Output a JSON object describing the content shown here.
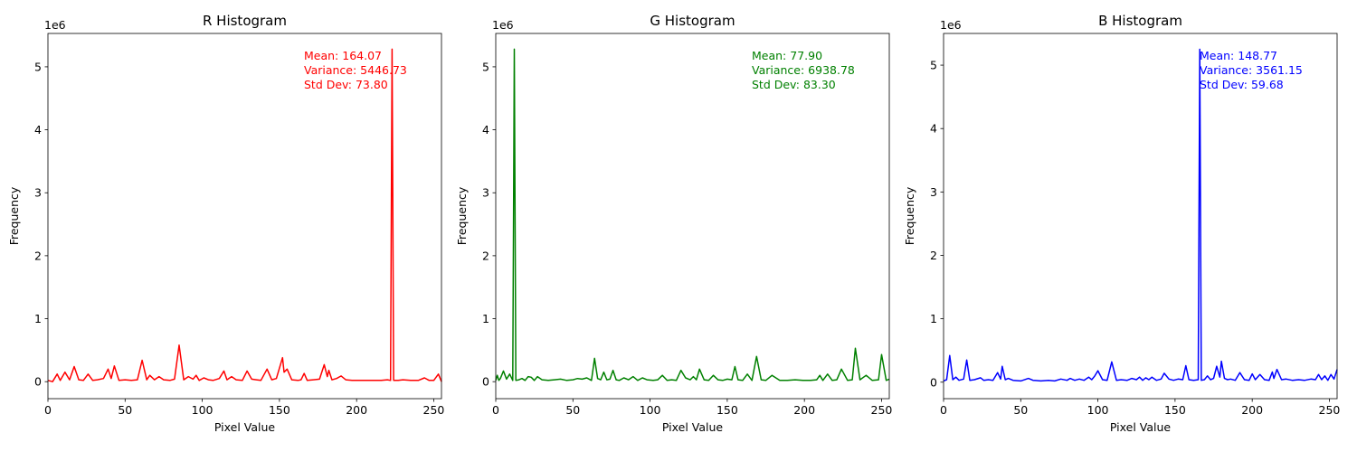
{
  "chart_data": [
    {
      "type": "line",
      "title": "R Histogram",
      "xlabel": "Pixel Value",
      "ylabel": "Frequency",
      "y_offset_label": "1e6",
      "xlim": [
        0,
        255
      ],
      "ylim": [
        -0.27,
        5.53
      ],
      "xticks": [
        0,
        50,
        100,
        150,
        200,
        250
      ],
      "yticks": [
        0,
        1,
        2,
        3,
        4,
        5
      ],
      "color": "#ff0000",
      "grid": false,
      "annotations": [
        "Mean: 164.07",
        "Variance: 5446.73",
        "Std Dev: 73.80"
      ],
      "series": [
        {
          "x": [
            0,
            3,
            6,
            8,
            11,
            14,
            17,
            20,
            23,
            26,
            29,
            32,
            36,
            39,
            41,
            43,
            46,
            50,
            54,
            58,
            61,
            64,
            66,
            69,
            72,
            75,
            79,
            82,
            85,
            88,
            91,
            94,
            96,
            98,
            101,
            104,
            107,
            111,
            114,
            116,
            119,
            122,
            126,
            129,
            132,
            135,
            138,
            142,
            145,
            148,
            152,
            153,
            155,
            158,
            162,
            164,
            166,
            168,
            172,
            176,
            179,
            181,
            182,
            184,
            187,
            190,
            193,
            197,
            201,
            206,
            211,
            216,
            220,
            222,
            223,
            224,
            225,
            227,
            230,
            235,
            240,
            244,
            247,
            250,
            253,
            255
          ],
          "y": [
            0.02,
            0.0,
            0.12,
            0.02,
            0.15,
            0.03,
            0.24,
            0.03,
            0.02,
            0.12,
            0.02,
            0.03,
            0.05,
            0.2,
            0.05,
            0.25,
            0.02,
            0.03,
            0.02,
            0.03,
            0.34,
            0.03,
            0.1,
            0.03,
            0.08,
            0.03,
            0.02,
            0.04,
            0.58,
            0.03,
            0.08,
            0.04,
            0.1,
            0.02,
            0.06,
            0.03,
            0.02,
            0.05,
            0.17,
            0.03,
            0.08,
            0.03,
            0.02,
            0.17,
            0.04,
            0.03,
            0.02,
            0.2,
            0.03,
            0.05,
            0.38,
            0.15,
            0.2,
            0.03,
            0.02,
            0.03,
            0.13,
            0.02,
            0.03,
            0.04,
            0.27,
            0.08,
            0.18,
            0.03,
            0.05,
            0.09,
            0.03,
            0.02,
            0.02,
            0.02,
            0.02,
            0.02,
            0.03,
            0.02,
            5.28,
            0.02,
            0.02,
            0.02,
            0.03,
            0.02,
            0.02,
            0.06,
            0.02,
            0.02,
            0.12,
            0.0
          ]
        }
      ]
    },
    {
      "type": "line",
      "title": "G Histogram",
      "xlabel": "Pixel Value",
      "ylabel": "Frequency",
      "y_offset_label": "1e6",
      "xlim": [
        0,
        255
      ],
      "ylim": [
        -0.27,
        5.53
      ],
      "xticks": [
        0,
        50,
        100,
        150,
        200,
        250
      ],
      "yticks": [
        0,
        1,
        2,
        3,
        4,
        5
      ],
      "color": "#008000",
      "grid": false,
      "annotations": [
        "Mean: 77.90",
        "Variance: 6938.78",
        "Std Dev: 83.30"
      ],
      "series": [
        {
          "x": [
            0,
            1,
            2,
            3,
            5,
            7,
            9,
            11,
            12,
            13,
            15,
            17,
            19,
            21,
            23,
            25,
            27,
            30,
            34,
            38,
            42,
            46,
            50,
            53,
            56,
            59,
            62,
            64,
            66,
            68,
            70,
            72,
            74,
            76,
            78,
            80,
            83,
            86,
            89,
            92,
            95,
            98,
            102,
            105,
            108,
            111,
            114,
            117,
            120,
            123,
            126,
            128,
            130,
            132,
            135,
            138,
            141,
            144,
            147,
            150,
            153,
            155,
            157,
            160,
            163,
            166,
            169,
            172,
            175,
            179,
            184,
            189,
            194,
            199,
            204,
            208,
            210,
            212,
            215,
            218,
            221,
            224,
            228,
            231,
            233,
            236,
            240,
            244,
            248,
            250,
            253,
            255
          ],
          "y": [
            0.02,
            0.1,
            0.02,
            0.05,
            0.17,
            0.04,
            0.12,
            0.02,
            5.28,
            0.02,
            0.03,
            0.05,
            0.02,
            0.08,
            0.07,
            0.02,
            0.08,
            0.03,
            0.02,
            0.03,
            0.04,
            0.02,
            0.03,
            0.05,
            0.04,
            0.06,
            0.02,
            0.37,
            0.05,
            0.03,
            0.15,
            0.03,
            0.04,
            0.18,
            0.03,
            0.02,
            0.06,
            0.03,
            0.08,
            0.02,
            0.06,
            0.03,
            0.02,
            0.03,
            0.1,
            0.02,
            0.03,
            0.02,
            0.18,
            0.06,
            0.03,
            0.08,
            0.03,
            0.2,
            0.03,
            0.02,
            0.1,
            0.03,
            0.02,
            0.04,
            0.03,
            0.24,
            0.03,
            0.02,
            0.12,
            0.02,
            0.4,
            0.03,
            0.02,
            0.1,
            0.02,
            0.02,
            0.03,
            0.02,
            0.02,
            0.03,
            0.1,
            0.02,
            0.12,
            0.02,
            0.03,
            0.2,
            0.02,
            0.03,
            0.53,
            0.03,
            0.1,
            0.02,
            0.03,
            0.43,
            0.02,
            0.04
          ]
        }
      ]
    },
    {
      "type": "line",
      "title": "B Histogram",
      "xlabel": "Pixel Value",
      "ylabel": "Frequency",
      "y_offset_label": "1e6",
      "xlim": [
        0,
        255
      ],
      "ylim": [
        -0.26,
        5.5
      ],
      "xticks": [
        0,
        50,
        100,
        150,
        200,
        250
      ],
      "yticks": [
        0,
        1,
        2,
        3,
        4,
        5
      ],
      "color": "#0000ff",
      "grid": false,
      "annotations": [
        "Mean: 148.77",
        "Variance: 3561.15",
        "Std Dev: 59.68"
      ],
      "series": [
        {
          "x": [
            0,
            2,
            4,
            6,
            8,
            10,
            13,
            15,
            17,
            20,
            24,
            26,
            29,
            32,
            35,
            37,
            38,
            40,
            42,
            45,
            50,
            55,
            58,
            63,
            68,
            72,
            76,
            80,
            82,
            85,
            88,
            91,
            94,
            96,
            98,
            100,
            103,
            106,
            109,
            112,
            115,
            119,
            122,
            125,
            127,
            129,
            131,
            133,
            135,
            138,
            141,
            143,
            146,
            149,
            152,
            155,
            157,
            159,
            162,
            165,
            166,
            167,
            169,
            171,
            173,
            175,
            177,
            179,
            180,
            182,
            184,
            186,
            189,
            192,
            195,
            198,
            200,
            202,
            205,
            208,
            211,
            213,
            214,
            216,
            219,
            222,
            226,
            230,
            234,
            238,
            241,
            243,
            245,
            247,
            249,
            251,
            253,
            255
          ],
          "y": [
            0.02,
            0.04,
            0.42,
            0.04,
            0.08,
            0.03,
            0.05,
            0.35,
            0.03,
            0.04,
            0.07,
            0.03,
            0.04,
            0.03,
            0.15,
            0.05,
            0.25,
            0.04,
            0.06,
            0.03,
            0.02,
            0.06,
            0.03,
            0.02,
            0.03,
            0.02,
            0.05,
            0.03,
            0.06,
            0.03,
            0.05,
            0.03,
            0.08,
            0.04,
            0.1,
            0.18,
            0.04,
            0.03,
            0.32,
            0.03,
            0.04,
            0.03,
            0.06,
            0.04,
            0.08,
            0.03,
            0.07,
            0.04,
            0.08,
            0.03,
            0.05,
            0.14,
            0.05,
            0.03,
            0.05,
            0.04,
            0.26,
            0.04,
            0.03,
            0.04,
            5.25,
            0.03,
            0.04,
            0.1,
            0.04,
            0.06,
            0.25,
            0.08,
            0.33,
            0.06,
            0.04,
            0.05,
            0.03,
            0.15,
            0.04,
            0.03,
            0.13,
            0.04,
            0.12,
            0.04,
            0.03,
            0.16,
            0.06,
            0.2,
            0.04,
            0.05,
            0.03,
            0.04,
            0.03,
            0.05,
            0.04,
            0.12,
            0.04,
            0.1,
            0.03,
            0.12,
            0.05,
            0.2
          ]
        }
      ]
    }
  ]
}
